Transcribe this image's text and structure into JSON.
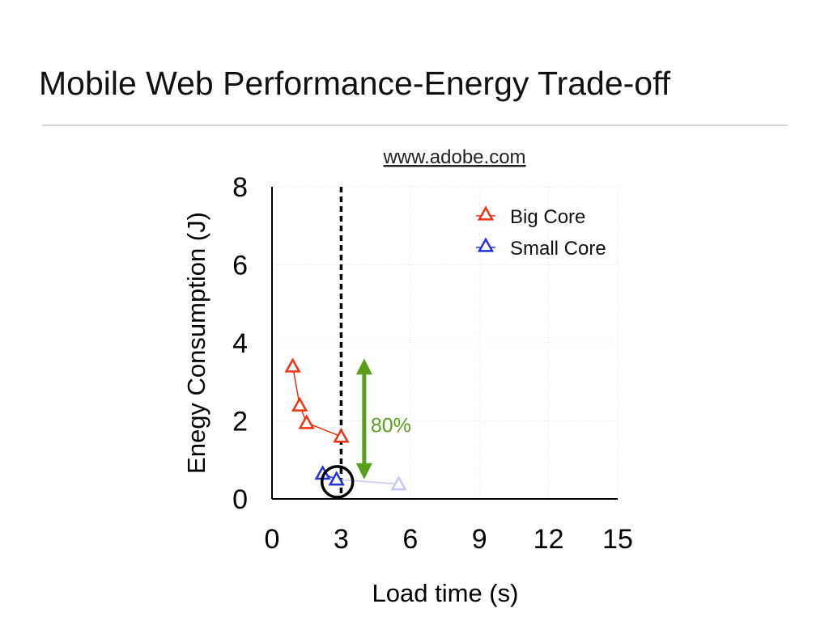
{
  "slide": {
    "title": "Mobile Web Performance-Energy Trade-off"
  },
  "colors": {
    "big_core": "#ee3311",
    "small_core": "#2233dd",
    "small_core_faded": "#c4c8f2",
    "annotation": "#58a019"
  },
  "chart_data": {
    "type": "line",
    "title": "www.adobe.com",
    "xlabel": "Load time (s)",
    "ylabel": "Enegy Consumption (J)",
    "xlim": [
      0,
      15
    ],
    "ylim": [
      0,
      8
    ],
    "xticks": [
      0,
      3,
      6,
      9,
      12,
      15
    ],
    "yticks": [
      0,
      2,
      4,
      6,
      8
    ],
    "grid": true,
    "legend_position": "top-right",
    "marker": "triangle-open",
    "series": [
      {
        "name": "Big Core",
        "color": "#ee3311",
        "points": [
          [
            0.9,
            3.4
          ],
          [
            1.2,
            2.4
          ],
          [
            1.5,
            1.95
          ],
          [
            3.0,
            1.6
          ]
        ]
      },
      {
        "name": "Small Core",
        "color": "#2233dd",
        "points": [
          [
            2.2,
            0.65
          ],
          [
            2.8,
            0.5
          ],
          [
            5.5,
            0.38
          ]
        ]
      }
    ],
    "annotations": {
      "threshold_x": 3,
      "highlight_point": [
        2.8,
        0.5
      ],
      "arrow": {
        "x": 4.0,
        "y_from": 0.5,
        "y_to": 3.6
      },
      "label": "80%"
    }
  }
}
